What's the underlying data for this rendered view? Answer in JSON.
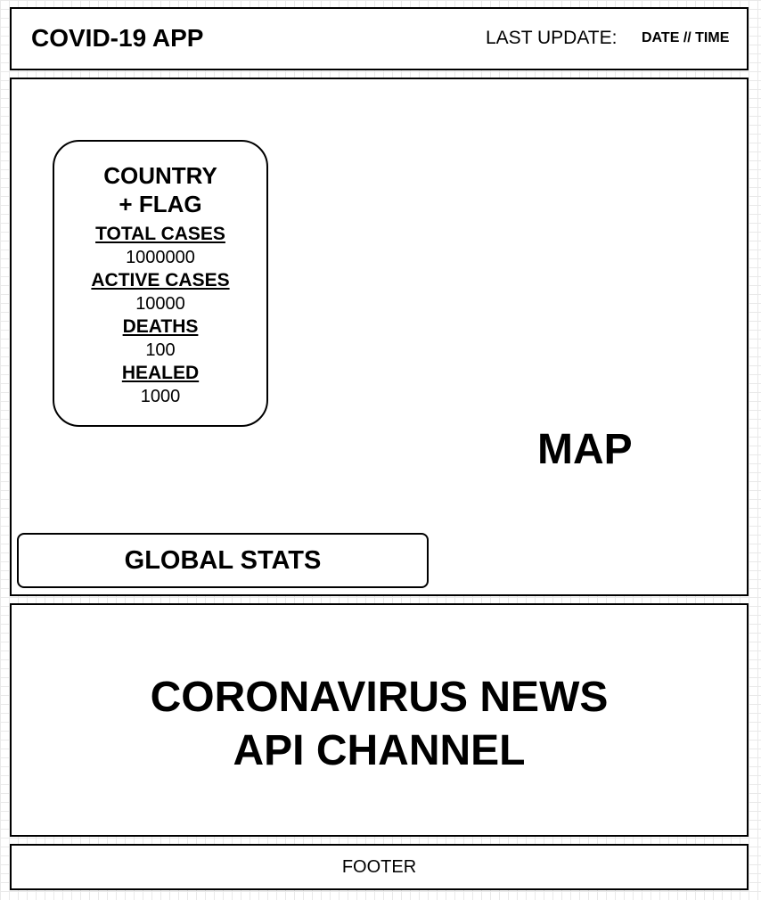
{
  "header": {
    "app_title": "COVID-19 APP",
    "last_update_label": "LAST UPDATE:",
    "date_time": "DATE // TIME"
  },
  "map_panel": {
    "map_label": "MAP",
    "country_card": {
      "title_line1": "COUNTRY",
      "title_line2": "+ FLAG",
      "stats": [
        {
          "label": "TOTAL CASES",
          "value": "1000000"
        },
        {
          "label": "ACTIVE CASES",
          "value": "10000"
        },
        {
          "label": "DEATHS",
          "value": "100"
        },
        {
          "label": "HEALED",
          "value": "1000"
        }
      ]
    },
    "global_stats_label": "GLOBAL STATS"
  },
  "news_panel": {
    "title_line1": "CORONAVIRUS NEWS",
    "title_line2": "API CHANNEL"
  },
  "footer": {
    "label": "FOOTER"
  }
}
